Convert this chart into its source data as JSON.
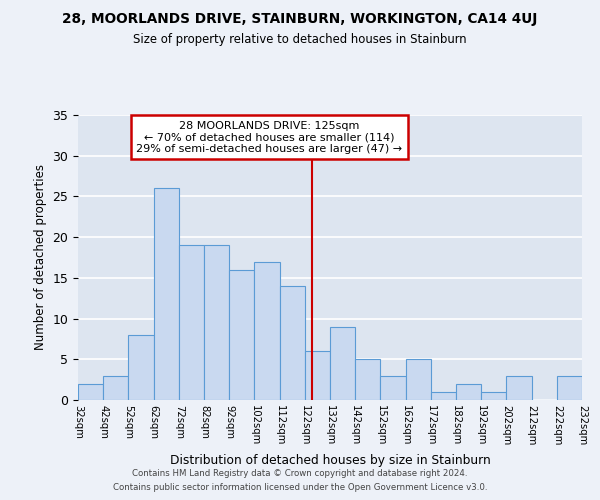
{
  "title": "28, MOORLANDS DRIVE, STAINBURN, WORKINGTON, CA14 4UJ",
  "subtitle": "Size of property relative to detached houses in Stainburn",
  "xlabel": "Distribution of detached houses by size in Stainburn",
  "ylabel": "Number of detached properties",
  "bin_edges": [
    32,
    42,
    52,
    62,
    72,
    82,
    92,
    102,
    112,
    122,
    132,
    142,
    152,
    162,
    172,
    182,
    192,
    202,
    212,
    222,
    232
  ],
  "bar_heights": [
    2,
    3,
    8,
    26,
    19,
    19,
    16,
    17,
    14,
    6,
    9,
    5,
    3,
    5,
    1,
    2,
    1,
    3,
    0,
    3
  ],
  "bar_color": "#c9d9f0",
  "bar_edge_color": "#5b9bd5",
  "reference_line_x": 125,
  "reference_line_color": "#cc0000",
  "annotation_title": "28 MOORLANDS DRIVE: 125sqm",
  "annotation_line1": "← 70% of detached houses are smaller (114)",
  "annotation_line2": "29% of semi-detached houses are larger (47) →",
  "annotation_box_edge": "#cc0000",
  "ylim": [
    0,
    35
  ],
  "yticks": [
    0,
    5,
    10,
    15,
    20,
    25,
    30,
    35
  ],
  "background_color": "#dde5f0",
  "grid_color": "#ffffff",
  "footer_line1": "Contains HM Land Registry data © Crown copyright and database right 2024.",
  "footer_line2": "Contains public sector information licensed under the Open Government Licence v3.0.",
  "tick_labels": [
    "32sqm",
    "42sqm",
    "52sqm",
    "62sqm",
    "72sqm",
    "82sqm",
    "92sqm",
    "102sqm",
    "112sqm",
    "122sqm",
    "132sqm",
    "142sqm",
    "152sqm",
    "162sqm",
    "172sqm",
    "182sqm",
    "192sqm",
    "202sqm",
    "212sqm",
    "222sqm",
    "232sqm"
  ],
  "fig_bg_color": "#edf1f8"
}
